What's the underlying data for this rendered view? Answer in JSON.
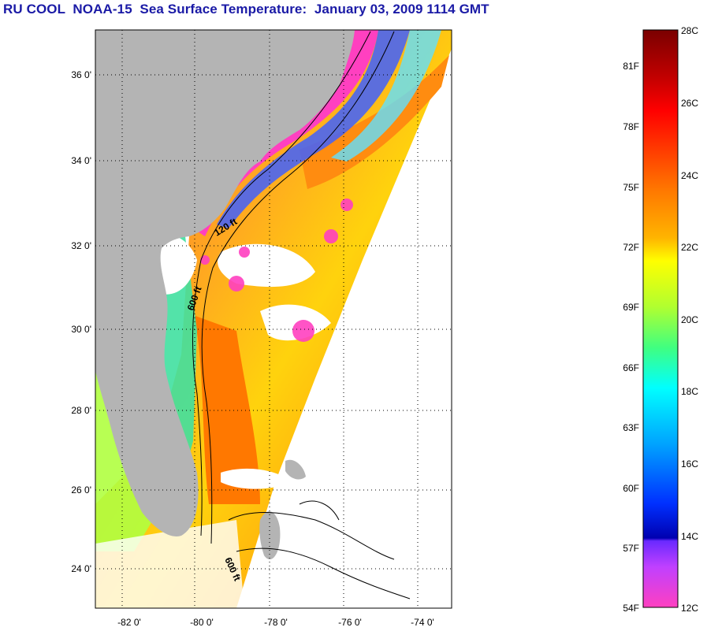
{
  "title": "RU COOL  NOAA-15  Sea Surface Temperature:  January 03, 2009 1114 GMT",
  "map": {
    "lat_ticks": [
      "36 0'",
      "34 0'",
      "32 0'",
      "30 0'",
      "28 0'",
      "26 0'",
      "24 0'"
    ],
    "lon_ticks": [
      "-82 0'",
      "-80 0'",
      "-78 0'",
      "-76 0'",
      "-74 0'"
    ],
    "contour_labels": [
      "120 ft",
      "600 ft",
      "600 ft"
    ],
    "land_color": "#b4b4b4",
    "cloud_color": "#ffffff"
  },
  "colorbar": {
    "celsius_labels": [
      "28C",
      "26C",
      "24C",
      "22C",
      "20C",
      "18C",
      "16C",
      "14C",
      "12C"
    ],
    "fahrenheit_labels": [
      "81F",
      "78F",
      "75F",
      "72F",
      "69F",
      "66F",
      "63F",
      "60F",
      "57F",
      "54F"
    ],
    "colors_top_to_bottom": [
      "#7a0000",
      "#e00000",
      "#ff0000",
      "#ff7000",
      "#ffb000",
      "#ffff00",
      "#a0ff40",
      "#40ff80",
      "#00ffff",
      "#00a0ff",
      "#0030ff",
      "#0000b0",
      "#8040ff",
      "#ff40ff",
      "#ff40c0"
    ]
  }
}
